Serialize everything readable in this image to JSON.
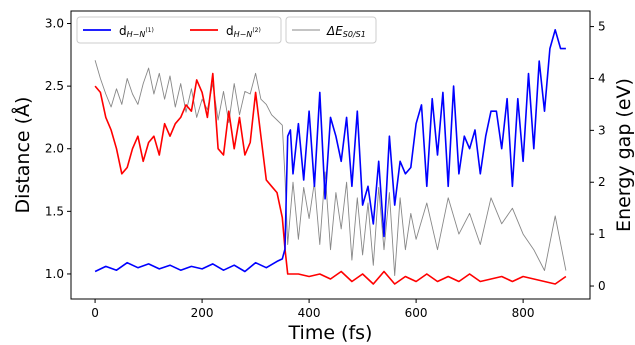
{
  "chart_data": {
    "type": "line",
    "xlabel": "Time (fs)",
    "ylabel_left": "Distance (Å)",
    "ylabel_right": "Energy gap (eV)",
    "xlim": [
      -45,
      925
    ],
    "ylim_left": [
      0.8,
      3.1
    ],
    "ylim_right": [
      -0.25,
      5.3
    ],
    "xticks": [
      0,
      200,
      400,
      600,
      800
    ],
    "yticks_left": [
      1.0,
      1.5,
      2.0,
      2.5,
      3.0
    ],
    "yticks_right": [
      0,
      1,
      2,
      3,
      4,
      5
    ],
    "grid": false,
    "legend_placement": "top-left",
    "series": [
      {
        "name": "d_{H−N^{(1)}}",
        "legend_main": "d",
        "legend_sub": "H−N",
        "legend_sup": "(1)",
        "axis": "left",
        "color": "#0000ff",
        "x": [
          0,
          20,
          40,
          60,
          80,
          100,
          120,
          140,
          160,
          180,
          200,
          220,
          240,
          260,
          280,
          300,
          320,
          340,
          350,
          355,
          360,
          365,
          370,
          380,
          390,
          400,
          410,
          420,
          430,
          440,
          450,
          460,
          470,
          480,
          490,
          500,
          510,
          520,
          530,
          540,
          550,
          560,
          570,
          580,
          590,
          600,
          610,
          620,
          630,
          640,
          650,
          660,
          670,
          680,
          690,
          700,
          710,
          720,
          730,
          740,
          750,
          760,
          770,
          780,
          790,
          800,
          810,
          820,
          830,
          840,
          850,
          860,
          870,
          880
        ],
        "y": [
          1.02,
          1.06,
          1.03,
          1.09,
          1.05,
          1.08,
          1.04,
          1.07,
          1.03,
          1.06,
          1.04,
          1.08,
          1.03,
          1.07,
          1.02,
          1.09,
          1.05,
          1.1,
          1.12,
          1.2,
          2.1,
          2.15,
          1.8,
          2.2,
          1.75,
          2.3,
          1.7,
          2.45,
          1.6,
          2.25,
          2.1,
          1.9,
          2.25,
          1.7,
          2.3,
          1.55,
          1.7,
          1.4,
          1.9,
          1.3,
          2.1,
          1.55,
          1.9,
          1.8,
          1.85,
          2.2,
          2.35,
          1.7,
          2.4,
          1.95,
          2.45,
          1.7,
          2.5,
          1.8,
          2.1,
          2.0,
          2.15,
          1.8,
          2.1,
          2.3,
          2.3,
          2.0,
          2.4,
          1.7,
          2.4,
          1.9,
          2.6,
          2.0,
          2.7,
          2.3,
          2.8,
          2.95,
          2.8,
          2.8
        ]
      },
      {
        "name": "d_{H−N^{(2)}}",
        "legend_main": "d",
        "legend_sub": "H−N",
        "legend_sup": "(2)",
        "axis": "left",
        "color": "#ff0000",
        "x": [
          0,
          10,
          20,
          30,
          40,
          50,
          60,
          70,
          80,
          90,
          100,
          110,
          120,
          130,
          140,
          150,
          160,
          170,
          180,
          190,
          200,
          210,
          220,
          230,
          240,
          250,
          260,
          270,
          280,
          290,
          300,
          310,
          320,
          330,
          340,
          350,
          355,
          360,
          380,
          400,
          420,
          440,
          460,
          480,
          500,
          520,
          540,
          560,
          580,
          600,
          620,
          640,
          660,
          680,
          700,
          720,
          740,
          760,
          780,
          800,
          820,
          840,
          860,
          880
        ],
        "y": [
          2.5,
          2.45,
          2.25,
          2.15,
          2.0,
          1.8,
          1.85,
          2.0,
          2.1,
          1.9,
          2.05,
          2.1,
          1.95,
          2.2,
          2.1,
          2.2,
          2.25,
          2.35,
          2.3,
          2.55,
          2.45,
          2.25,
          2.6,
          2.0,
          1.95,
          2.3,
          2.0,
          2.25,
          1.95,
          2.05,
          2.45,
          2.1,
          1.75,
          1.7,
          1.65,
          1.45,
          1.2,
          1.0,
          1.0,
          0.98,
          1.0,
          0.96,
          1.02,
          0.94,
          1.0,
          0.92,
          1.02,
          0.92,
          0.98,
          0.94,
          1.0,
          0.94,
          0.98,
          0.94,
          1.0,
          0.94,
          0.96,
          0.98,
          0.94,
          0.98,
          0.96,
          0.94,
          0.92,
          0.98
        ]
      },
      {
        "name": "ΔE_{S0/S1}",
        "legend_main": "ΔE",
        "legend_sub": "S0/S1",
        "axis": "right",
        "color": "#888888",
        "x": [
          0,
          10,
          20,
          30,
          40,
          50,
          60,
          70,
          80,
          90,
          100,
          110,
          120,
          130,
          140,
          150,
          160,
          170,
          180,
          190,
          200,
          210,
          220,
          230,
          240,
          250,
          260,
          270,
          280,
          290,
          300,
          310,
          320,
          330,
          340,
          350,
          355,
          360,
          370,
          380,
          390,
          400,
          410,
          420,
          430,
          440,
          450,
          460,
          470,
          480,
          490,
          500,
          510,
          520,
          530,
          540,
          550,
          560,
          570,
          580,
          590,
          600,
          620,
          640,
          660,
          680,
          700,
          720,
          740,
          760,
          780,
          800,
          820,
          840,
          860,
          880
        ],
        "y": [
          4.35,
          4.0,
          3.7,
          3.45,
          3.8,
          3.5,
          4.0,
          3.7,
          3.5,
          3.9,
          4.2,
          3.7,
          4.1,
          3.6,
          4.05,
          3.45,
          3.9,
          3.35,
          3.8,
          3.25,
          3.6,
          3.4,
          3.9,
          3.2,
          3.75,
          3.15,
          3.9,
          3.3,
          3.75,
          3.7,
          4.1,
          3.6,
          3.5,
          3.3,
          3.2,
          3.1,
          2.1,
          0.8,
          2.0,
          0.9,
          1.9,
          1.3,
          2.0,
          0.8,
          2.2,
          0.7,
          1.8,
          1.1,
          2.0,
          0.5,
          1.7,
          0.6,
          1.6,
          0.4,
          1.9,
          0.7,
          1.8,
          0.2,
          1.7,
          0.7,
          1.4,
          0.9,
          1.6,
          0.7,
          1.7,
          1.0,
          1.4,
          0.8,
          1.7,
          1.2,
          1.5,
          1.0,
          0.7,
          0.3,
          1.35,
          0.3
        ]
      }
    ]
  }
}
